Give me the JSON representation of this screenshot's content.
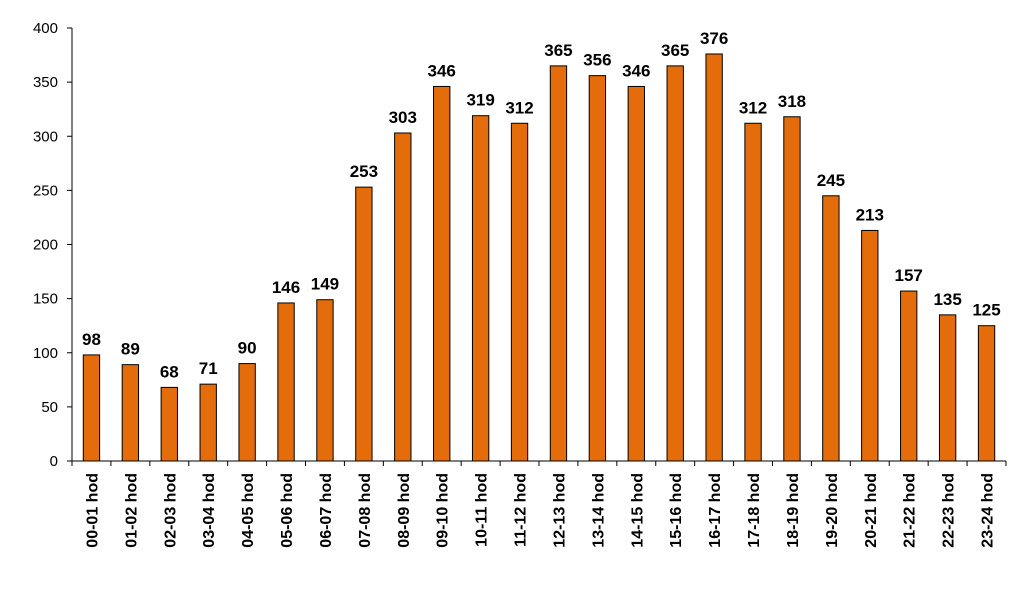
{
  "chart_data": {
    "type": "bar",
    "title": "",
    "xlabel": "",
    "ylabel": "",
    "categories": [
      "00-01 hod",
      "01-02 hod",
      "02-03 hod",
      "03-04 hod",
      "04-05 hod",
      "05-06 hod",
      "06-07 hod",
      "07-08 hod",
      "08-09 hod",
      "09-10 hod",
      "10-11 hod",
      "11-12 hod",
      "12-13 hod",
      "13-14 hod",
      "14-15 hod",
      "15-16 hod",
      "16-17 hod",
      "17-18 hod",
      "18-19 hod",
      "19-20 hod",
      "20-21 hod",
      "21-22 hod",
      "22-23 hod",
      "23-24 hod"
    ],
    "values": [
      98,
      89,
      68,
      71,
      90,
      146,
      149,
      253,
      303,
      346,
      319,
      312,
      365,
      356,
      346,
      365,
      376,
      312,
      318,
      245,
      213,
      157,
      135,
      125
    ],
    "ylim": [
      0,
      400
    ],
    "yticks": [
      0,
      50,
      100,
      150,
      200,
      250,
      300,
      350,
      400
    ],
    "grid": false,
    "legend": "none",
    "bar_color": "#E46C0A",
    "bar_edge_color": "#000000"
  }
}
